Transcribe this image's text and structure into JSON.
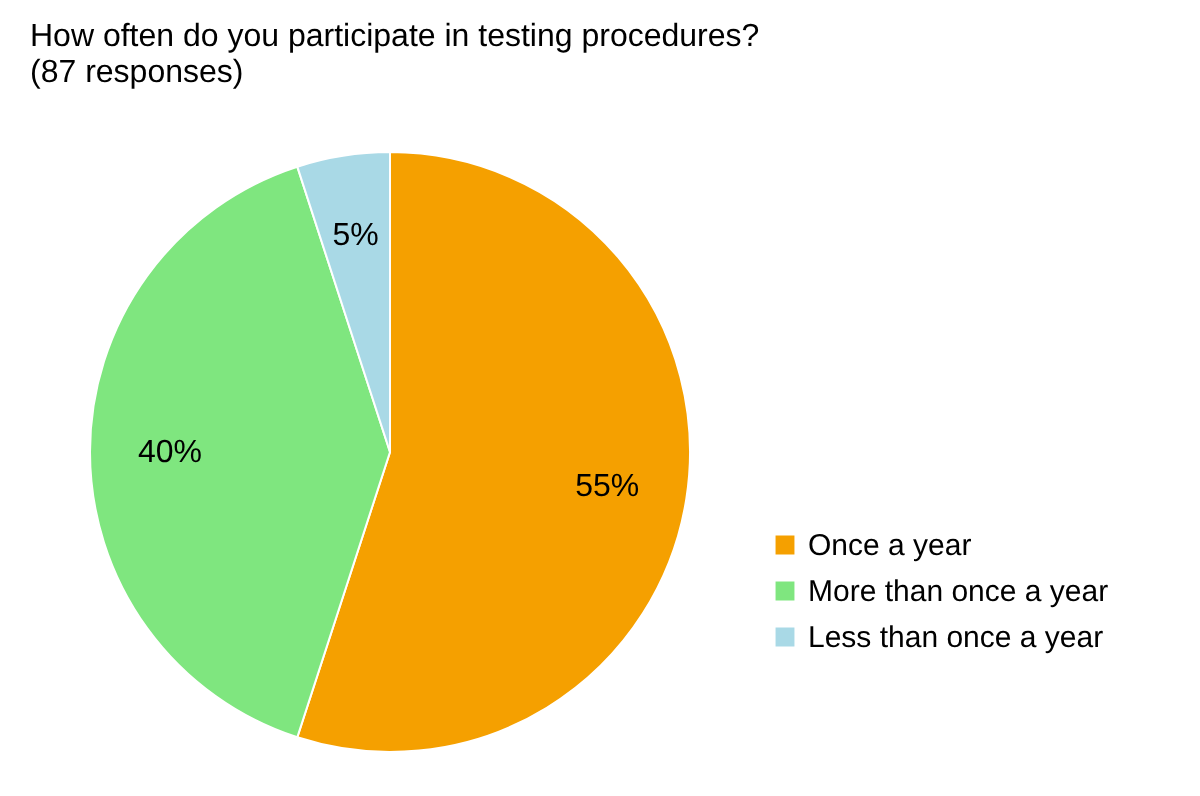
{
  "chart_data": {
    "type": "pie",
    "title": [
      "How often do you participate in testing procedures?",
      "(87 responses)"
    ],
    "categories": [
      "Once a year",
      "More than once a year",
      "Less than once a year"
    ],
    "values": [
      55,
      40,
      5
    ],
    "colors": [
      "#f5a000",
      "#7fe67f",
      "#a9d9e6"
    ],
    "value_labels": [
      "55%",
      "40%",
      "5%"
    ],
    "legend": "right"
  }
}
